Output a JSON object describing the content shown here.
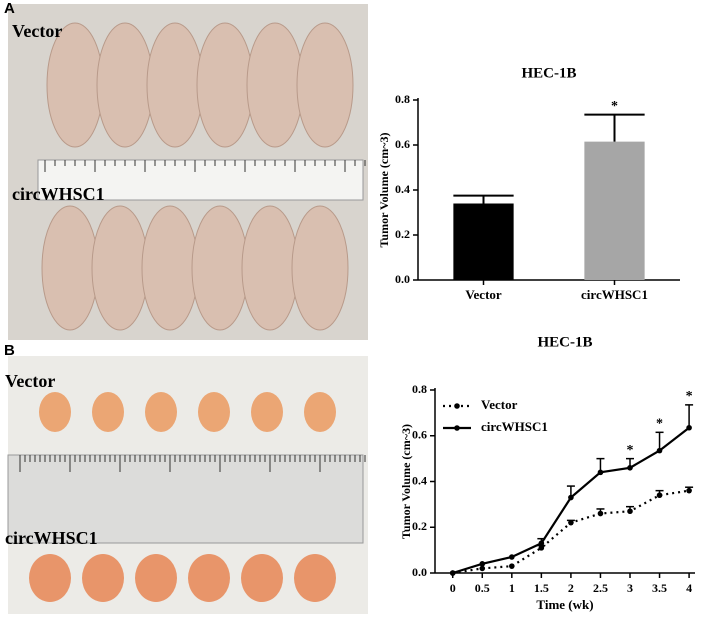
{
  "panels": [
    {
      "label": "A",
      "photo_labels": [
        "Vector",
        "circWHSC1"
      ]
    },
    {
      "label": "B",
      "photo_labels": [
        "Vector",
        "circWHSC1"
      ]
    }
  ],
  "chart_data": [
    {
      "type": "bar",
      "title": "HEC-1B",
      "y_label": "Tumor Volume (cm~3)",
      "categories": [
        "Vector",
        "circWHSC1"
      ],
      "values": [
        0.34,
        0.615
      ],
      "errors": [
        0.035,
        0.12
      ],
      "colors": [
        "#000000",
        "#a6a6a6"
      ],
      "ylim": [
        0,
        0.8
      ],
      "yticks": [
        {
          "value": 0,
          "label": "0.0"
        },
        0.2,
        0.4,
        0.6,
        0.8
      ],
      "annotations": [
        {
          "category": "circWHSC1",
          "text": "*"
        }
      ]
    },
    {
      "type": "line",
      "title": "HEC-1B",
      "x_label": "Time (wk)",
      "y_label": "Tumor Volume (cm~3)",
      "x": [
        0,
        0.5,
        1,
        1.5,
        2,
        2.5,
        3,
        3.5,
        4
      ],
      "series": [
        {
          "name": "Vector",
          "color": "#000000",
          "dash": "dotted",
          "values": [
            0,
            0.02,
            0.03,
            0.11,
            0.22,
            0.26,
            0.27,
            0.34,
            0.36
          ],
          "errors": [
            0,
            0,
            0,
            0.01,
            0.01,
            0.02,
            0.02,
            0.02,
            0.015
          ]
        },
        {
          "name": "circWHSC1",
          "color": "#000000",
          "dash": "solid",
          "values": [
            0,
            0.04,
            0.07,
            0.13,
            0.33,
            0.44,
            0.46,
            0.535,
            0.635
          ],
          "errors": [
            0,
            0,
            0,
            0.02,
            0.05,
            0.06,
            0.04,
            0.08,
            0.1
          ]
        }
      ],
      "xlim": [
        -0.3,
        4.1
      ],
      "xticks": [
        0,
        0.5,
        1,
        1.5,
        2,
        2.5,
        3,
        3.5,
        4
      ],
      "ylim": [
        0,
        0.8
      ],
      "yticks": [
        {
          "value": 0,
          "label": "0.0"
        },
        0.2,
        0.4,
        0.6,
        0.8
      ],
      "legend": "upper left",
      "annotations": [
        {
          "x": 3,
          "text": "*"
        },
        {
          "x": 3.5,
          "text": "*"
        },
        {
          "x": 4,
          "text": "*"
        }
      ]
    }
  ]
}
